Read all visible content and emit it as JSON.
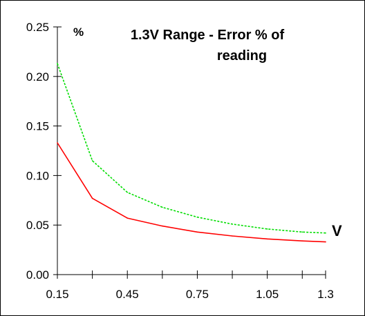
{
  "chart_data": {
    "type": "line",
    "title_lines": [
      "1.3V Range - Error % of",
      "reading"
    ],
    "ylabel": "%",
    "xlabel": "V",
    "x": [
      0.15,
      0.3,
      0.45,
      0.6,
      0.75,
      0.9,
      1.05,
      1.2,
      1.3
    ],
    "x_ticks": [
      0.15,
      0.3,
      0.45,
      0.6,
      0.75,
      0.9,
      1.05,
      1.2,
      1.3
    ],
    "x_tick_labels": [
      "0.15",
      "",
      "0.45",
      "",
      "0.75",
      "",
      "1.05",
      "",
      "1.3"
    ],
    "y_ticks": [
      0.0,
      0.05,
      0.1,
      0.15,
      0.2,
      0.25
    ],
    "y_tick_labels": [
      "0.00",
      "0.05",
      "0.10",
      "0.15",
      "0.20",
      "0.25"
    ],
    "xlim": [
      0.15,
      1.3
    ],
    "ylim": [
      0.0,
      0.25
    ],
    "grid": false,
    "series": [
      {
        "color": "#ff0000",
        "dash": "solid",
        "values": [
          0.133,
          0.077,
          0.057,
          0.049,
          0.043,
          0.039,
          0.036,
          0.034,
          0.033
        ]
      },
      {
        "color": "#00dd00",
        "dash": "dashed",
        "values": [
          0.213,
          0.115,
          0.083,
          0.068,
          0.058,
          0.051,
          0.046,
          0.043,
          0.042
        ]
      }
    ]
  }
}
